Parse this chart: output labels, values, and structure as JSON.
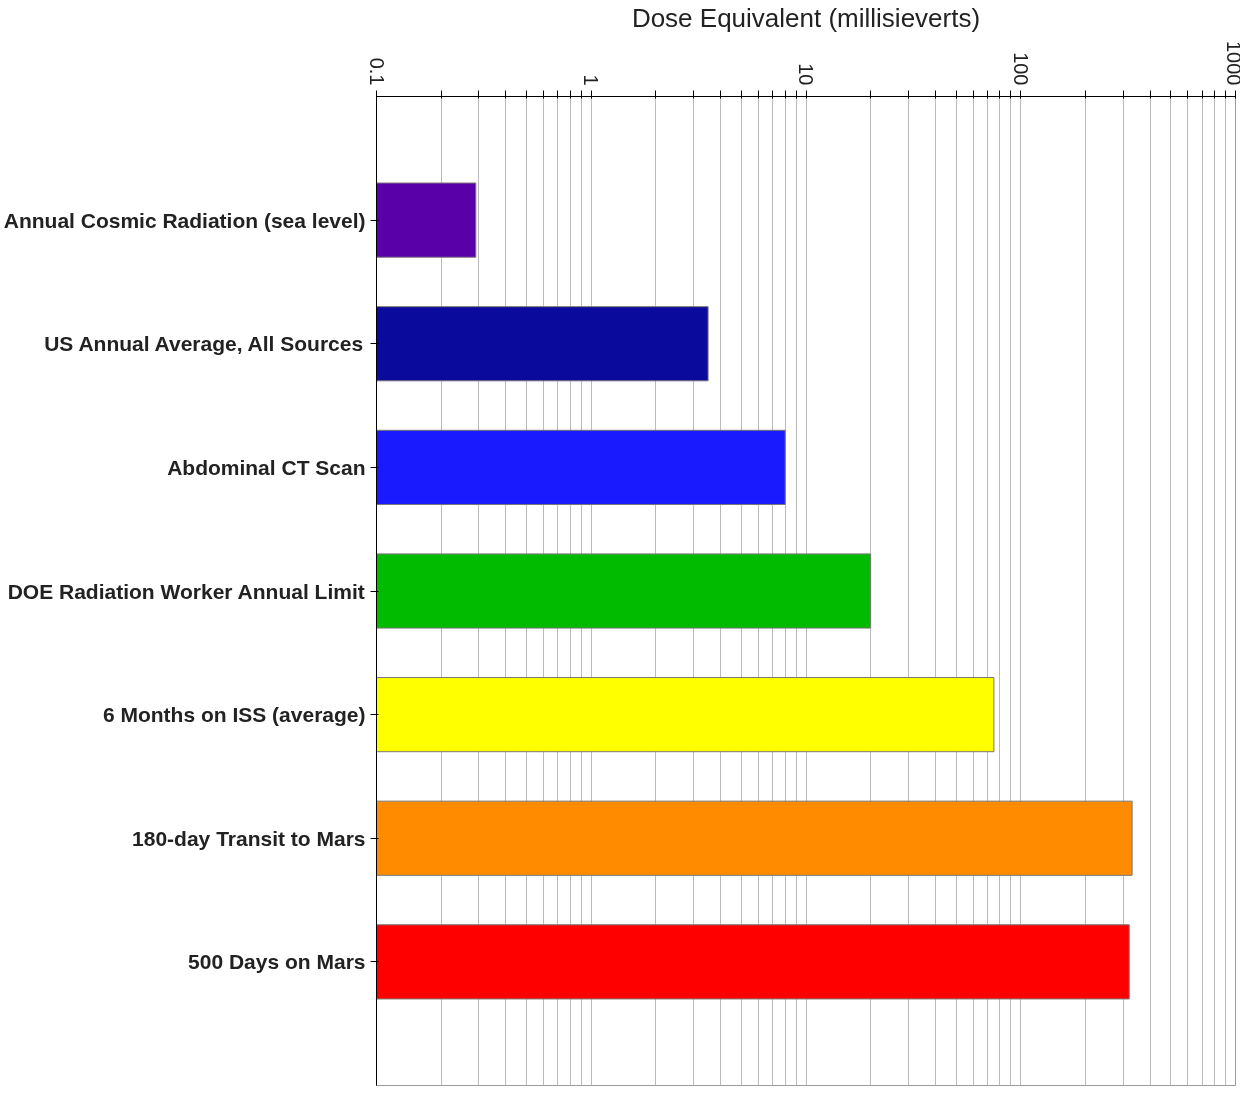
{
  "chart_data": {
    "type": "bar",
    "orientation": "horizontal",
    "log": "x",
    "xlabel": "Dose Equivalent (millisieverts)",
    "categories": [
      "Annual Cosmic Radiation (sea level)",
      "US Annual Average, All Sources",
      "Abdominal CT Scan",
      "DOE Radiation Worker Annual Limit",
      "6 Months on ISS (average)",
      "180-day Transit to Mars",
      "500 Days on Mars"
    ],
    "values": [
      0.29,
      3.5,
      8,
      20,
      75,
      330,
      320
    ],
    "colors": [
      "#5a00a8",
      "#0a0a9c",
      "#1a1aff",
      "#00bb00",
      "#ffff00",
      "#ff8c00",
      "#ff0000"
    ],
    "xlim": [
      0.1,
      1000
    ],
    "xticks": [
      0.1,
      {
        "value": 0.2,
        "label": null
      },
      {
        "value": 0.3,
        "label": null
      },
      {
        "value": 0.4,
        "label": null
      },
      {
        "value": 0.5,
        "label": null
      },
      {
        "value": 0.6,
        "label": null
      },
      {
        "value": 0.7,
        "label": null
      },
      {
        "value": 0.8,
        "label": null
      },
      {
        "value": 0.9,
        "label": null
      },
      1,
      {
        "value": 2,
        "label": null
      },
      {
        "value": 3,
        "label": null
      },
      {
        "value": 4,
        "label": null
      },
      {
        "value": 5,
        "label": null
      },
      {
        "value": 6,
        "label": null
      },
      {
        "value": 7,
        "label": null
      },
      {
        "value": 8,
        "label": null
      },
      {
        "value": 9,
        "label": null
      },
      10,
      {
        "value": 20,
        "label": null
      },
      {
        "value": 30,
        "label": null
      },
      {
        "value": 40,
        "label": null
      },
      {
        "value": 50,
        "label": null
      },
      {
        "value": 60,
        "label": null
      },
      {
        "value": 70,
        "label": null
      },
      {
        "value": 80,
        "label": null
      },
      {
        "value": 90,
        "label": null
      },
      100,
      {
        "value": 200,
        "label": null
      },
      {
        "value": 300,
        "label": null
      },
      {
        "value": 400,
        "label": null
      },
      {
        "value": 500,
        "label": null
      },
      {
        "value": 600,
        "label": null
      },
      {
        "value": 700,
        "label": null
      },
      {
        "value": 800,
        "label": null
      },
      {
        "value": 900,
        "label": null
      },
      1000
    ],
    "grid": "x"
  }
}
